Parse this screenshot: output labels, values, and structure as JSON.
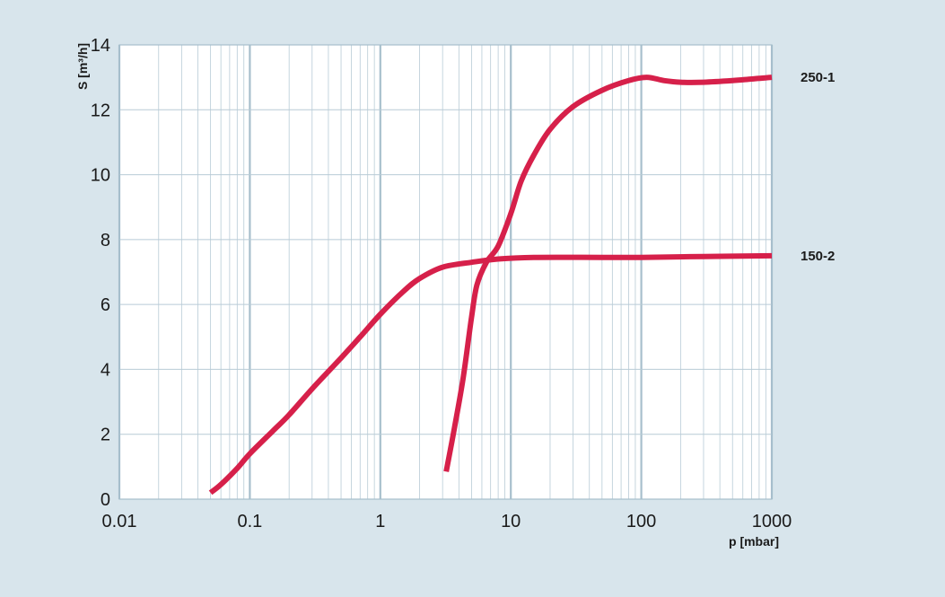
{
  "chart_data": {
    "type": "line",
    "title": "",
    "xlabel": "p [mbar]",
    "ylabel": "S [m³/h]",
    "xscale": "log",
    "xlim": [
      0.01,
      1000
    ],
    "ylim": [
      0,
      14
    ],
    "x_ticks": [
      0.01,
      0.1,
      1,
      10,
      100,
      1000
    ],
    "x_tick_labels": [
      "0.01",
      "0.1",
      "1",
      "10",
      "100",
      "1000"
    ],
    "y_ticks": [
      0,
      2,
      4,
      6,
      8,
      10,
      12,
      14
    ],
    "y_tick_labels": [
      "0",
      "2",
      "4",
      "6",
      "8",
      "10",
      "12",
      "14"
    ],
    "grid": true,
    "legend": "labels at right end of each line",
    "colors": {
      "background": "#d8e5ec",
      "plot_area": "#ffffff",
      "grid": "#b8cbd6",
      "major_grid": "#a7bfcc",
      "line": "#d6204a"
    },
    "series": [
      {
        "name": "250-1",
        "points": [
          [
            3.2,
            0.85
          ],
          [
            3.7,
            2.2
          ],
          [
            4.3,
            3.7
          ],
          [
            5.0,
            5.6
          ],
          [
            5.5,
            6.6
          ],
          [
            6.5,
            7.3
          ],
          [
            8.0,
            7.8
          ],
          [
            10.0,
            8.8
          ],
          [
            12.0,
            9.8
          ],
          [
            15.0,
            10.6
          ],
          [
            20.0,
            11.4
          ],
          [
            30.0,
            12.1
          ],
          [
            50.0,
            12.6
          ],
          [
            80.0,
            12.9
          ],
          [
            110.0,
            13.0
          ],
          [
            150.0,
            12.9
          ],
          [
            200.0,
            12.85
          ],
          [
            300.0,
            12.85
          ],
          [
            500.0,
            12.9
          ],
          [
            700.0,
            12.95
          ],
          [
            1000.0,
            13.0
          ]
        ]
      },
      {
        "name": "150-2",
        "points": [
          [
            0.05,
            0.2
          ],
          [
            0.06,
            0.45
          ],
          [
            0.08,
            0.95
          ],
          [
            0.1,
            1.4
          ],
          [
            0.15,
            2.1
          ],
          [
            0.2,
            2.6
          ],
          [
            0.3,
            3.4
          ],
          [
            0.5,
            4.35
          ],
          [
            0.7,
            5.0
          ],
          [
            1.0,
            5.7
          ],
          [
            1.5,
            6.4
          ],
          [
            2.0,
            6.8
          ],
          [
            3.0,
            7.15
          ],
          [
            5.0,
            7.3
          ],
          [
            8.0,
            7.4
          ],
          [
            15.0,
            7.45
          ],
          [
            50.0,
            7.45
          ],
          [
            100.0,
            7.45
          ],
          [
            300.0,
            7.48
          ],
          [
            1000.0,
            7.5
          ]
        ]
      }
    ]
  }
}
